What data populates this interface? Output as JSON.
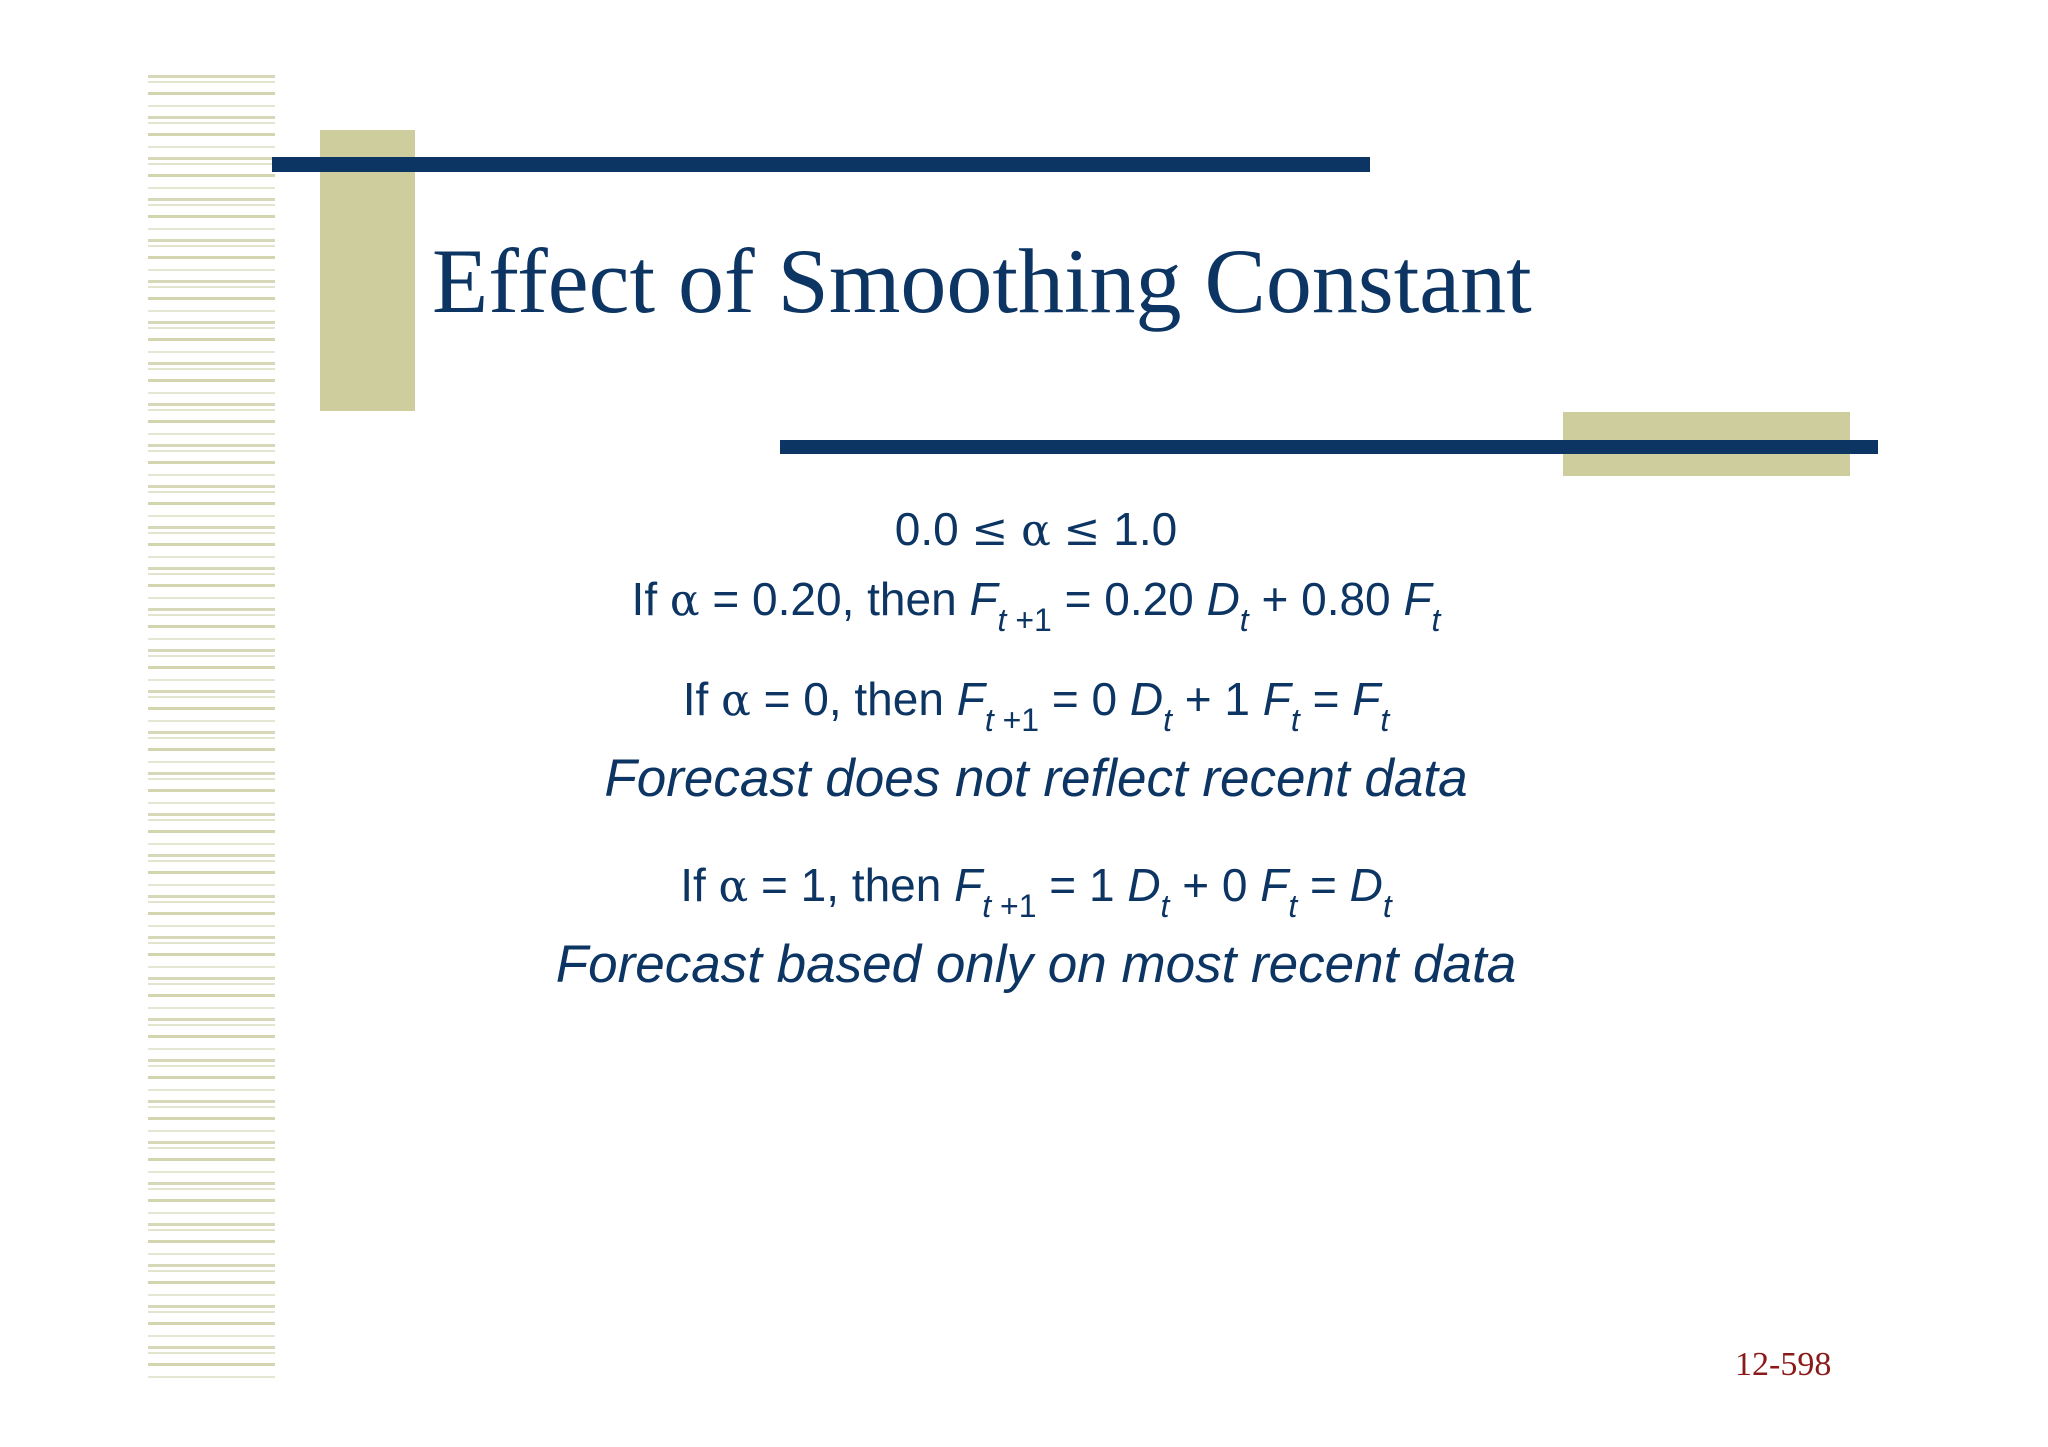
{
  "slide": {
    "title": "Effect of Smoothing Constant",
    "page_number": "12-598"
  },
  "content": {
    "range": {
      "lower": "0.0",
      "le": "≤",
      "alpha": "α",
      "upper": "1.0"
    },
    "case_020": {
      "if": "If",
      "alpha": "α",
      "condition": "= 0.20, then",
      "f": "F",
      "sub_t": "t",
      "sub_plus1": "+1",
      "eq_coef_d": "= 0.20",
      "d": "D",
      "sub_t2": "t",
      "plus_coef_f": "+ 0.80",
      "f2": "F",
      "sub_t3": "t"
    },
    "case_0": {
      "if": "If",
      "alpha": "α",
      "condition": "= 0, then",
      "f": "F",
      "sub_t": "t",
      "sub_plus1": "+1",
      "eq_coef_d": "= 0",
      "d": "D",
      "sub_t2": "t",
      "plus_coef_f": "+ 1",
      "f2": "F",
      "sub_t3": "t",
      "eq": "=",
      "result": "F",
      "sub_t4": "t",
      "note": "Forecast does not reflect recent data"
    },
    "case_1": {
      "if": "If",
      "alpha": "α",
      "condition": "= 1, then",
      "f": "F",
      "sub_t": "t",
      "sub_plus1": "+1",
      "eq_coef_d": "= 1",
      "d": "D",
      "sub_t2": "t",
      "plus_coef_f": "+ 0",
      "f2": "F",
      "sub_t3": "t",
      "eq": "=",
      "result": "D",
      "sub_t4": "t",
      "note": "Forecast based only on most recent data"
    }
  },
  "colors": {
    "navy": "#0d3563",
    "olive": "#cdcd9e",
    "page_number": "#8b1a1a"
  }
}
